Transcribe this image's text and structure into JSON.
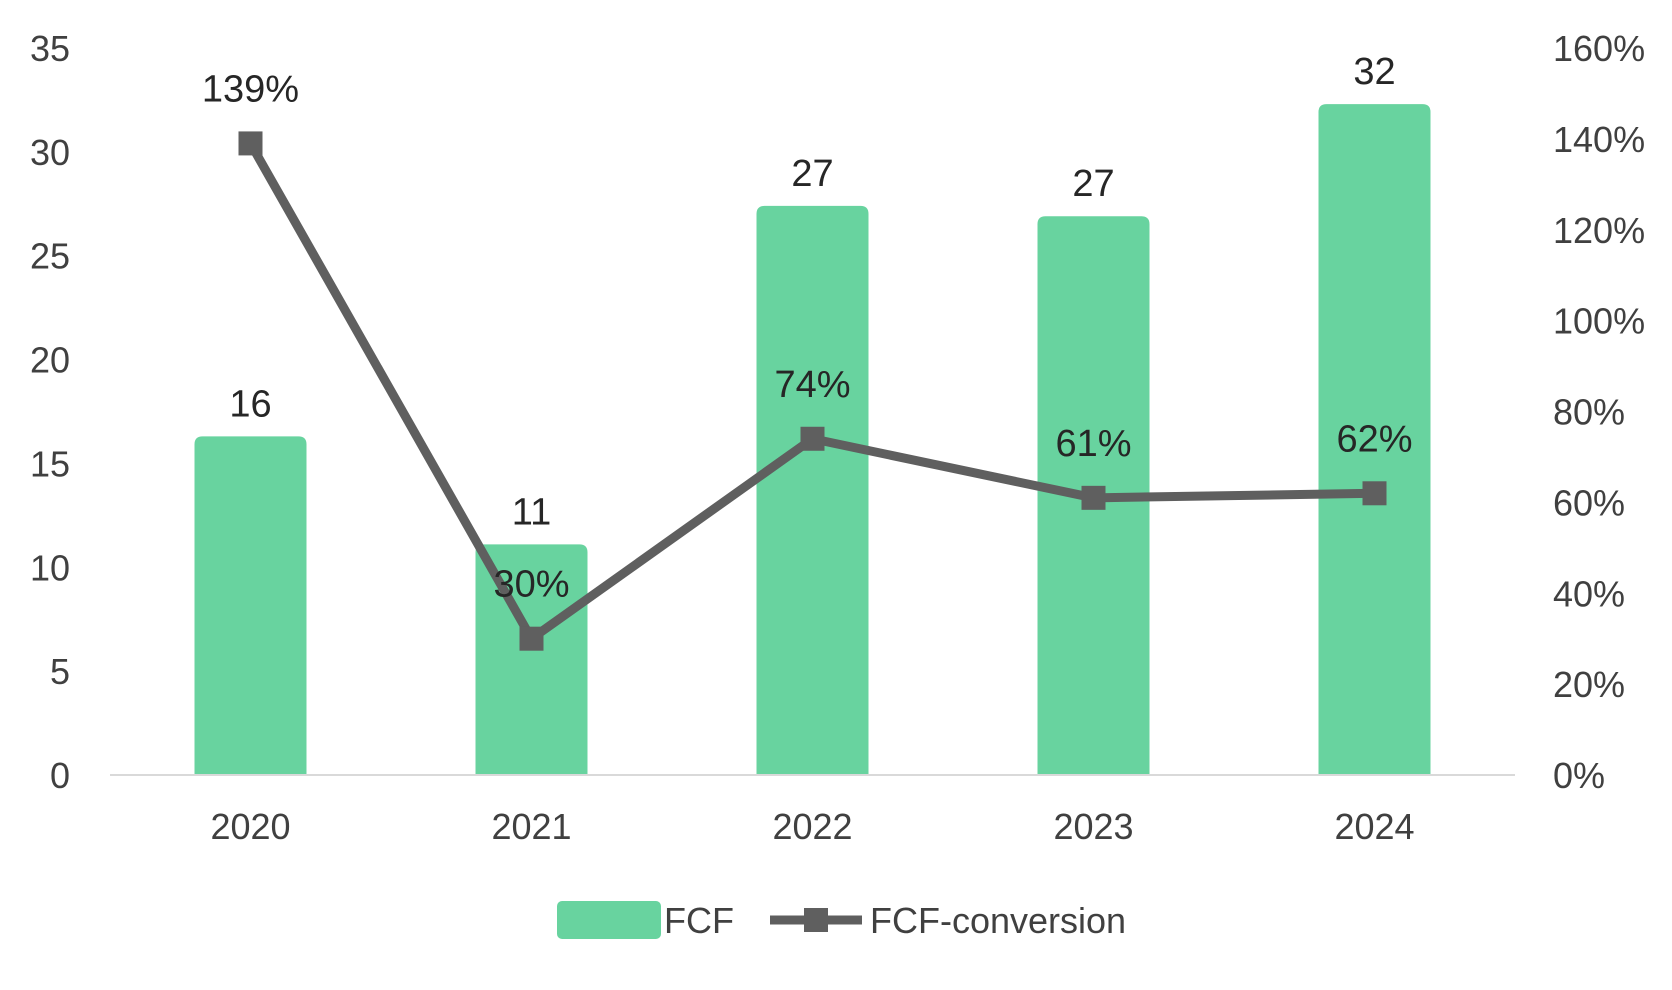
{
  "chart_data": {
    "type": "bar",
    "categories": [
      "2020",
      "2021",
      "2022",
      "2023",
      "2024"
    ],
    "series": [
      {
        "name": "FCF",
        "type": "bar",
        "axis": "left",
        "color": "#68d39f",
        "values": [
          16.3,
          11.1,
          27.4,
          26.9,
          32.3
        ],
        "labels": [
          "16",
          "11",
          "27",
          "27",
          "32"
        ]
      },
      {
        "name": "FCF-conversion",
        "type": "line",
        "axis": "right",
        "color": "#5f5f5f",
        "marker": "square",
        "values": [
          139,
          30,
          74,
          61,
          62
        ],
        "labels": [
          "139%",
          "30%",
          "74%",
          "61%",
          "62%"
        ]
      }
    ],
    "y_left": {
      "min": 0,
      "max": 35,
      "ticks": [
        "0",
        "5",
        "10",
        "15",
        "20",
        "25",
        "30",
        "35"
      ]
    },
    "y_right": {
      "min": 0,
      "max": 160,
      "ticks": [
        "0%",
        "20%",
        "40%",
        "60%",
        "80%",
        "100%",
        "120%",
        "140%",
        "160%"
      ]
    },
    "grid": false,
    "legend": "bottom-center",
    "title": "",
    "xlabel": "",
    "ylabel": ""
  }
}
